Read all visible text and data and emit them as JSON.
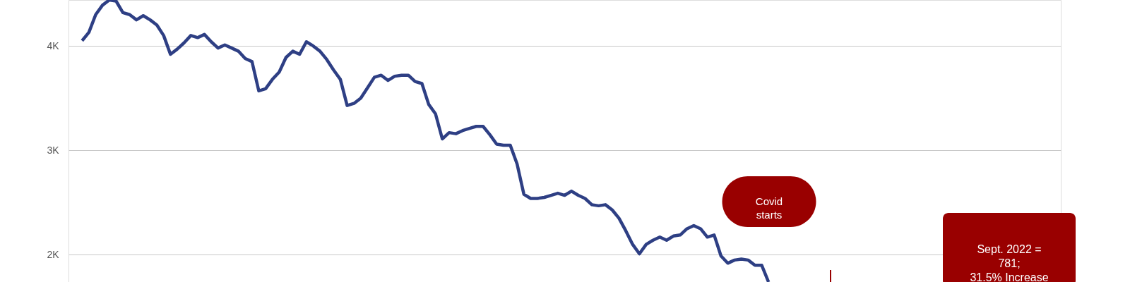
{
  "chart_data": {
    "type": "line",
    "categories": [
      null,
      null,
      null,
      null,
      null,
      null,
      null,
      null,
      null,
      null,
      null,
      null,
      null,
      null,
      null,
      null,
      null,
      null,
      null,
      null,
      null,
      null,
      null,
      null,
      null,
      null,
      null,
      null,
      null,
      null,
      null,
      null,
      null,
      null,
      null,
      null,
      null,
      null,
      null,
      null,
      null,
      null,
      null,
      null,
      null,
      null,
      null,
      null,
      null,
      null,
      null,
      null,
      null,
      null,
      null,
      null,
      null,
      null,
      null,
      null,
      null,
      null,
      null,
      null,
      null,
      null,
      null,
      null,
      null,
      null,
      null,
      null,
      null,
      null,
      null,
      null,
      null,
      null,
      null,
      null,
      null,
      null,
      null,
      null,
      null,
      null,
      null,
      null,
      null,
      null,
      null,
      null,
      null,
      null,
      null,
      null,
      null,
      null,
      null,
      null,
      null,
      null,
      null,
      null,
      null,
      null,
      null,
      null,
      null,
      null,
      null,
      null,
      null,
      null,
      null,
      null,
      null,
      null,
      null,
      null,
      null,
      null,
      null,
      null,
      null,
      null,
      null,
      null,
      null,
      null,
      null,
      null,
      null,
      null,
      null,
      null,
      null,
      null,
      null,
      null,
      null,
      null,
      null,
      null,
      null,
      null,
      null
    ],
    "series": [
      {
        "color": "#2e3f84",
        "values": [
          null,
          null,
          4050,
          4130,
          4300,
          4390,
          4440,
          4430,
          4320,
          4300,
          4250,
          4290,
          4250,
          4200,
          4100,
          3920,
          3970,
          4030,
          4100,
          4080,
          4110,
          4040,
          3980,
          4010,
          3980,
          3950,
          3880,
          3850,
          3570,
          3590,
          3680,
          3750,
          3890,
          3950,
          3920,
          4040,
          4000,
          3950,
          3870,
          3770,
          3680,
          3430,
          3450,
          3500,
          3600,
          3700,
          3720,
          3670,
          3710,
          3720,
          3720,
          3660,
          3640,
          3440,
          3350,
          3110,
          3170,
          3160,
          3190,
          3210,
          3230,
          3230,
          3150,
          3060,
          3050,
          3050,
          2870,
          2580,
          2540,
          2540,
          2550,
          2570,
          2590,
          2570,
          2610,
          2570,
          2540,
          2480,
          2470,
          2480,
          2430,
          2350,
          2230,
          2100,
          2010,
          2100,
          2140,
          2170,
          2140,
          2180,
          2190,
          2250,
          2280,
          2250,
          2170,
          2190,
          1990,
          1920,
          1950,
          1960,
          1950,
          1900,
          1900,
          1740,
          null,
          null,
          null,
          null,
          null,
          null,
          null,
          null,
          null,
          null,
          null,
          null,
          null,
          null,
          null,
          null,
          null,
          null,
          null,
          null,
          null,
          null,
          null,
          null,
          null,
          null,
          null,
          null,
          null,
          null,
          null,
          null,
          null,
          null,
          null,
          null,
          null,
          null,
          null,
          null,
          null,
          null,
          null
        ]
      }
    ],
    "ylim": [
      1740,
      4440
    ],
    "yticks": [
      {
        "value": 2000,
        "label": "2K"
      },
      {
        "value": 3000,
        "label": "3K"
      },
      {
        "value": 4000,
        "label": "4K"
      }
    ],
    "grid": "y",
    "tick_labels": "y",
    "marker": "none",
    "line_style": "solid",
    "annotations": [
      "Covid\nstarts",
      "Sept. 2022 =\n781;\n31.5% Increase\nto last year"
    ]
  }
}
